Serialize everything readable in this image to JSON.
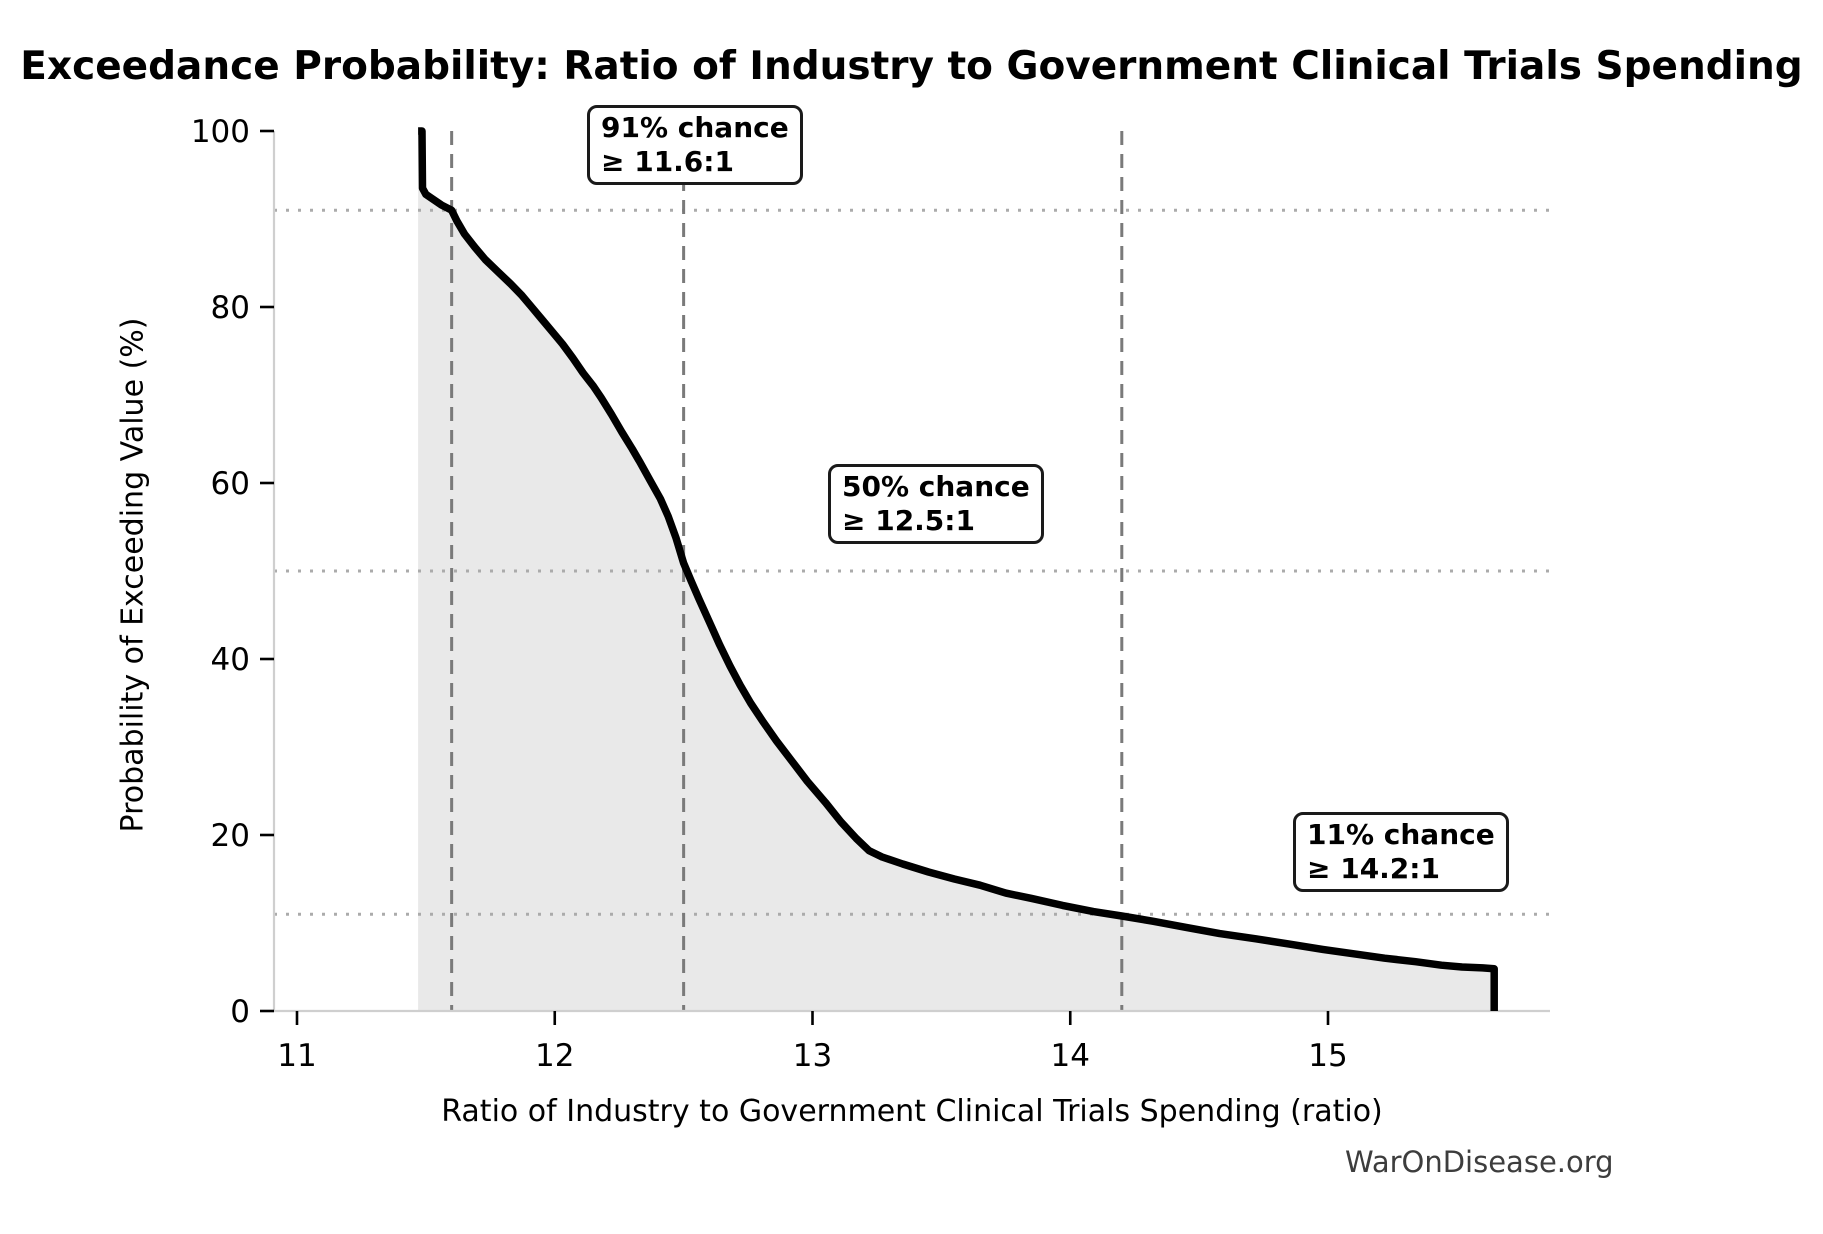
{
  "watermark": "WarOnDisease.org",
  "chart_data": {
    "type": "area",
    "title": "Exceedance Probability: Ratio of Industry to Government Clinical Trials Spending",
    "xlabel": "Ratio of Industry to Government Clinical Trials Spending (ratio)",
    "ylabel": "Probability of Exceeding Value (%)",
    "xlim": [
      10.91,
      15.86
    ],
    "ylim": [
      0,
      100
    ],
    "x_ticks": [
      11,
      12,
      13,
      14,
      15
    ],
    "y_ticks": [
      0,
      20,
      40,
      60,
      80,
      100
    ],
    "grid": "partial",
    "hlines_dotted": [
      91,
      50,
      11
    ],
    "vlines_dashed": [
      11.6,
      12.5,
      14.2
    ],
    "line_color": "#000000",
    "fill_color": "#e9e9e9",
    "dashed_line_color": "#7a7a7a",
    "dotted_line_color": "#ababab",
    "spine_color": "#cfcfcf",
    "annotations": [
      {
        "line1": "91% chance",
        "line2": "≥ 11.6:1",
        "x": 11.6,
        "prob": 91
      },
      {
        "line1": "50% chance",
        "line2": "≥ 12.5:1",
        "x": 12.5,
        "prob": 50
      },
      {
        "line1": "11% chance",
        "line2": "≥ 14.2:1",
        "x": 14.2,
        "prob": 11
      }
    ],
    "curve": [
      [
        11.47,
        100
      ],
      [
        11.485,
        100
      ],
      [
        11.487,
        93.5
      ],
      [
        11.5,
        92.8
      ],
      [
        11.53,
        92.2
      ],
      [
        11.56,
        91.6
      ],
      [
        11.6,
        91.0
      ],
      [
        11.62,
        89.8
      ],
      [
        11.65,
        88.3
      ],
      [
        11.69,
        86.8
      ],
      [
        11.73,
        85.4
      ],
      [
        11.78,
        84.0
      ],
      [
        11.83,
        82.6
      ],
      [
        11.87,
        81.4
      ],
      [
        11.91,
        80.0
      ],
      [
        11.95,
        78.6
      ],
      [
        11.99,
        77.2
      ],
      [
        12.03,
        75.8
      ],
      [
        12.07,
        74.2
      ],
      [
        12.11,
        72.5
      ],
      [
        12.15,
        71.0
      ],
      [
        12.18,
        69.7
      ],
      [
        12.22,
        67.8
      ],
      [
        12.26,
        65.8
      ],
      [
        12.3,
        63.9
      ],
      [
        12.33,
        62.4
      ],
      [
        12.37,
        60.3
      ],
      [
        12.41,
        58.2
      ],
      [
        12.44,
        56.2
      ],
      [
        12.47,
        53.8
      ],
      [
        12.5,
        50.9
      ],
      [
        12.53,
        48.8
      ],
      [
        12.56,
        46.8
      ],
      [
        12.6,
        44.2
      ],
      [
        12.64,
        41.6
      ],
      [
        12.68,
        39.2
      ],
      [
        12.72,
        37.0
      ],
      [
        12.76,
        35.0
      ],
      [
        12.81,
        32.8
      ],
      [
        12.86,
        30.7
      ],
      [
        12.92,
        28.4
      ],
      [
        12.98,
        26.1
      ],
      [
        13.05,
        23.7
      ],
      [
        13.11,
        21.5
      ],
      [
        13.17,
        19.6
      ],
      [
        13.22,
        18.2
      ],
      [
        13.27,
        17.5
      ],
      [
        13.35,
        16.7
      ],
      [
        13.45,
        15.8
      ],
      [
        13.55,
        15.0
      ],
      [
        13.65,
        14.3
      ],
      [
        13.75,
        13.4
      ],
      [
        13.85,
        12.8
      ],
      [
        13.97,
        12.0
      ],
      [
        14.09,
        11.3
      ],
      [
        14.2,
        10.8
      ],
      [
        14.32,
        10.2
      ],
      [
        14.45,
        9.5
      ],
      [
        14.58,
        8.8
      ],
      [
        14.72,
        8.2
      ],
      [
        14.85,
        7.6
      ],
      [
        14.98,
        7.0
      ],
      [
        15.1,
        6.5
      ],
      [
        15.22,
        6.0
      ],
      [
        15.34,
        5.6
      ],
      [
        15.44,
        5.2
      ],
      [
        15.52,
        5.0
      ],
      [
        15.6,
        4.9
      ],
      [
        15.645,
        4.8
      ],
      [
        15.645,
        0
      ]
    ]
  }
}
